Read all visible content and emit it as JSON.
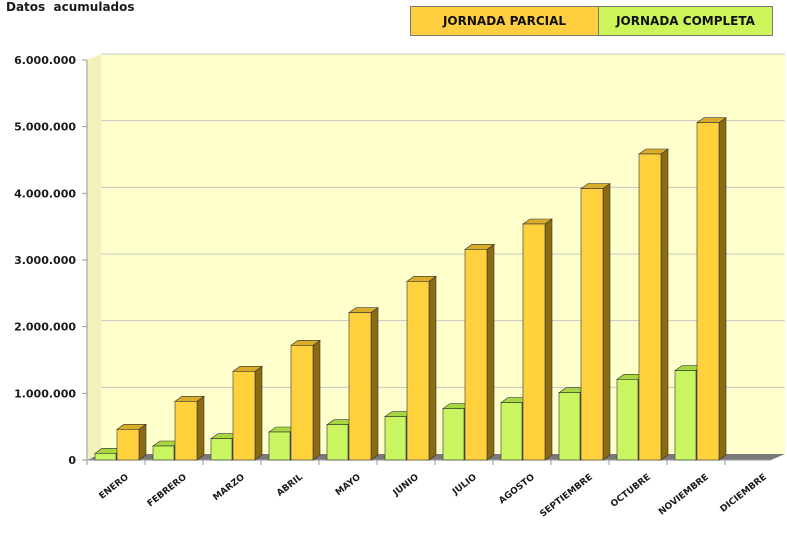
{
  "chart_title": "Datos  acumulados",
  "legend": {
    "parcial": "JORNADA PARCIAL",
    "completa": "JORNADA COMPLETA"
  },
  "colors": {
    "parcial_front": "#ffd13c",
    "parcial_side": "#8a6a12",
    "parcial_top": "#d9ac2a",
    "completa_front": "#c8f560",
    "completa_side": "#5e7a1e",
    "completa_top": "#a7d640",
    "plot_bg": "#ffffcc",
    "floor": "#7a7a7a"
  },
  "chart_data": {
    "type": "bar",
    "title": "Datos  acumulados",
    "xlabel": "",
    "ylabel": "",
    "ylim": [
      0,
      6000000
    ],
    "yticks": [
      0,
      1000000,
      2000000,
      3000000,
      4000000,
      5000000,
      6000000
    ],
    "ytick_labels": [
      "0",
      "1.000.000",
      "2.000.000",
      "3.000.000",
      "4.000.000",
      "5.000.000",
      "6.000.000"
    ],
    "categories": [
      "ENERO",
      "FEBRERO",
      "MARZO",
      "ABRIL",
      "MAYO",
      "JUNIO",
      "JULIO",
      "AGOSTO",
      "SEPTIEMBRE",
      "OCTUBRE",
      "NOVIEMBRE",
      "DICIEMBRE"
    ],
    "series": [
      {
        "name": "JORNADA COMPLETA",
        "values": [
          100000,
          210000,
          320000,
          420000,
          530000,
          650000,
          770000,
          860000,
          1010000,
          1210000,
          1340000,
          null
        ]
      },
      {
        "name": "JORNADA PARCIAL",
        "values": [
          460000,
          880000,
          1330000,
          1720000,
          2210000,
          2680000,
          3160000,
          3540000,
          4070000,
          4590000,
          5060000,
          null
        ]
      }
    ],
    "grid": true,
    "legend_position": "top-right"
  }
}
